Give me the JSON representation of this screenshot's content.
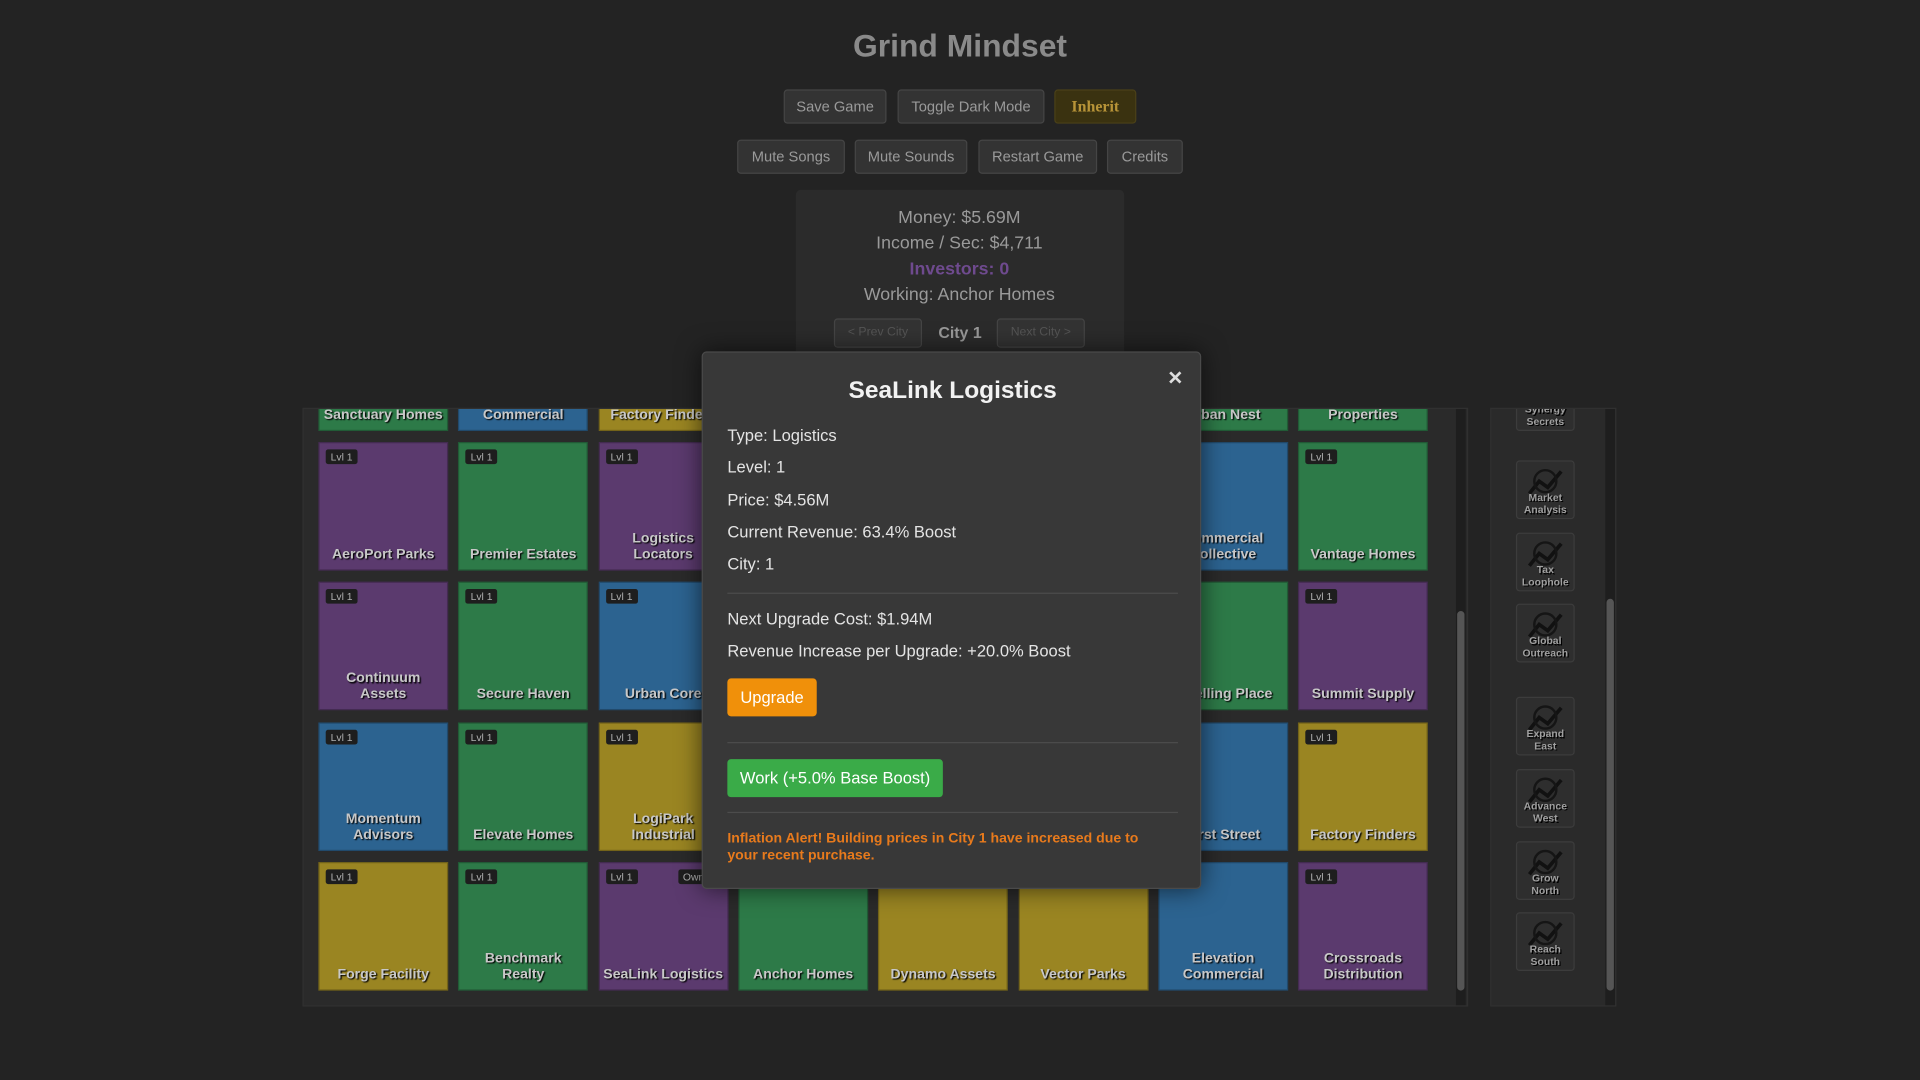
{
  "header": {
    "title": "Grind Mindset"
  },
  "buttons_top": [
    "Save Game",
    "Toggle Dark Mode",
    "Inherit"
  ],
  "buttons_second": [
    "Mute Songs",
    "Mute Sounds",
    "Restart Game",
    "Credits"
  ],
  "stats": {
    "money": "Money: $5.69M",
    "income": "Income / Sec: $4,711",
    "investors": "Investors: 0",
    "working": "Working: Anchor Homes"
  },
  "city_nav": {
    "prev": "< Prev City",
    "current": "City 1",
    "next": "Next City >"
  },
  "grid": {
    "partial_row": [
      {
        "name": "Sanctuary Homes",
        "color": "green"
      },
      {
        "name": "Commercial",
        "color": "blue"
      },
      {
        "name": "Factory Finders",
        "color": "yellow"
      },
      {
        "color": "green"
      },
      {
        "color": "blue"
      },
      {
        "color": "yellow"
      },
      {
        "name": "Urban Nest",
        "color": "green"
      },
      {
        "name": "Properties",
        "color": "green"
      }
    ],
    "rows": [
      [
        {
          "name": "AeroPort Parks",
          "level": "Lvl 1",
          "color": "purple"
        },
        {
          "name": "Premier Estates",
          "level": "Lvl 1",
          "color": "green"
        },
        {
          "name": "Logistics Locators",
          "level": "Lvl 1",
          "color": "purple"
        },
        {
          "color": "blue"
        },
        {
          "color": "green"
        },
        {
          "color": "yellow"
        },
        {
          "name": "Commercial Collective",
          "color": "blue"
        },
        {
          "name": "Vantage Homes",
          "level": "Lvl 1",
          "color": "green"
        }
      ],
      [
        {
          "name": "Continuum Assets",
          "level": "Lvl 1",
          "color": "purple"
        },
        {
          "name": "Secure Haven",
          "level": "Lvl 1",
          "color": "green"
        },
        {
          "name": "Urban Core",
          "level": "Lvl 1",
          "color": "blue"
        },
        {
          "color": "purple"
        },
        {
          "color": "blue"
        },
        {
          "color": "green"
        },
        {
          "name": "Dwelling Place",
          "color": "green"
        },
        {
          "name": "Summit Supply",
          "level": "Lvl 1",
          "color": "purple"
        }
      ],
      [
        {
          "name": "Momentum Advisors",
          "level": "Lvl 1",
          "color": "blue"
        },
        {
          "name": "Elevate Homes",
          "level": "Lvl 1",
          "color": "green"
        },
        {
          "name": "LogiPark Industrial",
          "level": "Lvl 1",
          "color": "yellow"
        },
        {
          "color": "green"
        },
        {
          "color": "purple"
        },
        {
          "color": "blue"
        },
        {
          "name": "First Street",
          "color": "blue"
        },
        {
          "name": "Factory Finders",
          "level": "Lvl 1",
          "color": "yellow"
        }
      ],
      [
        {
          "name": "Forge Facility",
          "level": "Lvl 1",
          "color": "yellow"
        },
        {
          "name": "Benchmark Realty",
          "level": "Lvl 1",
          "color": "green"
        },
        {
          "name": "SeaLink Logistics",
          "level": "Lvl 1",
          "badge": "Owned",
          "color": "purple"
        },
        {
          "name": "Anchor Homes",
          "color": "green"
        },
        {
          "name": "Dynamo Assets",
          "color": "yellow"
        },
        {
          "name": "Vector Parks",
          "color": "yellow"
        },
        {
          "name": "Elevation Commercial",
          "color": "blue"
        },
        {
          "name": "Crossroads Distribution",
          "level": "Lvl 1",
          "color": "purple"
        }
      ]
    ]
  },
  "upgrades": [
    "Synergy Secrets",
    "Market Analysis",
    "Tax Loophole",
    "Global Outreach",
    "Expand East",
    "Advance West",
    "Grow North",
    "Reach South"
  ],
  "modal": {
    "title": "SeaLink Logistics",
    "close": "×",
    "details": [
      "Type: Logistics",
      "Level: 1",
      "Price: $4.56M",
      "Current Revenue: 63.4% Boost",
      "City: 1"
    ],
    "upgrade_info": [
      "Next Upgrade Cost: $1.94M",
      "Revenue Increase per Upgrade: +20.0% Boost"
    ],
    "upgrade_button": "Upgrade",
    "work_button": "Work (+5.0% Base Boost)",
    "alert": "Inflation Alert! Building prices in City 1 have increased due to your recent purchase."
  }
}
